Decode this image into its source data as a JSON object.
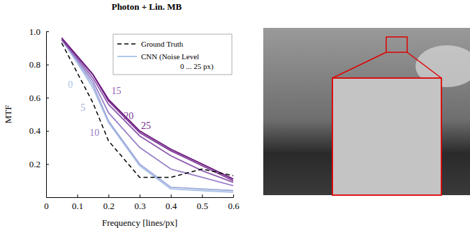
{
  "chart_data": {
    "type": "line",
    "title": "Photon + Lin. MB",
    "x_label": "Frequency [lines/px]",
    "y_label": "MTF",
    "x": [
      0.05,
      0.1,
      0.15,
      0.2,
      0.3,
      0.4,
      0.5,
      0.6
    ],
    "xlim": [
      0,
      0.6
    ],
    "xticks": [
      0,
      0.1,
      0.2,
      0.3,
      0.4,
      0.5,
      0.6
    ],
    "ylim": [
      0,
      1
    ],
    "yticks": [
      0.2,
      0.4,
      0.6,
      0.8,
      {
        "value": 1,
        "label": "1.0"
      }
    ],
    "grid": false,
    "legend": "upper right",
    "cnn_legend": [
      "CNN (Noise Level",
      "0 ... 25 px)"
    ],
    "series": [
      {
        "name": "Ground Truth",
        "color": "#000000",
        "line_style": "dashed",
        "values": [
          0.93,
          0.75,
          0.57,
          0.34,
          0.12,
          0.12,
          0.17,
          0.13
        ]
      },
      {
        "name": "0",
        "color": "#a9c1e6",
        "line_style": "solid",
        "values": [
          0.95,
          0.81,
          0.66,
          0.45,
          0.19,
          0.05,
          0.04,
          0.03
        ]
      },
      {
        "name": "5",
        "color": "#9ea8dc",
        "line_style": "solid",
        "values": [
          0.95,
          0.82,
          0.68,
          0.46,
          0.2,
          0.06,
          0.05,
          0.04
        ]
      },
      {
        "name": "10",
        "color": "#9a80c8",
        "line_style": "solid",
        "values": [
          0.95,
          0.83,
          0.7,
          0.51,
          0.3,
          0.17,
          0.12,
          0.07
        ]
      },
      {
        "name": "15",
        "color": "#8e5bae",
        "line_style": "solid",
        "values": [
          0.95,
          0.84,
          0.72,
          0.56,
          0.37,
          0.25,
          0.16,
          0.09
        ]
      },
      {
        "name": "20",
        "color": "#7e3a96",
        "line_style": "solid",
        "values": [
          0.96,
          0.85,
          0.74,
          0.58,
          0.39,
          0.28,
          0.19,
          0.1
        ]
      },
      {
        "name": "25",
        "color": "#6c1a7e",
        "line_style": "solid",
        "values": [
          0.96,
          0.85,
          0.74,
          0.59,
          0.4,
          0.29,
          0.2,
          0.11
        ]
      }
    ]
  }
}
